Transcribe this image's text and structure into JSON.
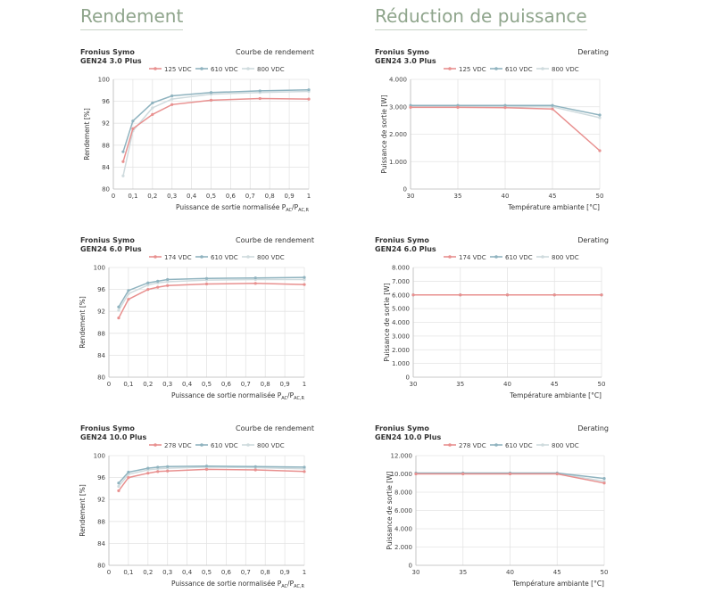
{
  "sections": {
    "left_title": "Rendement",
    "right_title": "Réduction de puissance"
  },
  "colors": {
    "red": "#e8908f",
    "blue": "#8fb3bf",
    "light": "#cfdbde",
    "grid": "#e4e4e4",
    "axis": "#bdbdbd"
  },
  "chart_data": [
    {
      "type": "line",
      "product_line1": "Fronius Symo",
      "product_line2": "GEN24 3.0 Plus",
      "title": "Courbe de rendement",
      "ylabel": "Rendement [%]",
      "xlabel_main": "Puissance de sortie normalisée P",
      "xlabel_sub1": "AC",
      "xlabel_mid": "/P",
      "xlabel_sub2": "AC,R",
      "xlim": [
        0,
        1
      ],
      "ylim": [
        80,
        100
      ],
      "xticks": [
        "0",
        "0,1",
        "0,2",
        "0,3",
        "0,4",
        "0,5",
        "0,6",
        "0,7",
        "0,8",
        "0,9",
        "1"
      ],
      "yticks": [
        "80",
        "84",
        "88",
        "92",
        "96",
        "100"
      ],
      "series": [
        {
          "name": "125 VDC",
          "x": [
            0.05,
            0.1,
            0.2,
            0.3,
            0.5,
            0.75,
            1.0
          ],
          "y": [
            85.0,
            91.0,
            93.6,
            95.4,
            96.2,
            96.5,
            96.4
          ]
        },
        {
          "name": "610 VDC",
          "x": [
            0.05,
            0.1,
            0.2,
            0.3,
            0.5,
            0.75,
            1.0
          ],
          "y": [
            86.8,
            92.4,
            95.7,
            97.0,
            97.6,
            97.9,
            98.1
          ]
        },
        {
          "name": "800 VDC",
          "x": [
            0.05,
            0.1,
            0.2,
            0.3,
            0.5,
            0.75,
            1.0
          ],
          "y": [
            82.4,
            90.6,
            94.8,
            96.4,
            97.3,
            97.6,
            97.8
          ]
        }
      ]
    },
    {
      "type": "line",
      "product_line1": "Fronius Symo",
      "product_line2": "GEN24 3.0 Plus",
      "title": "Derating",
      "ylabel": "Puissance de sortie [W]",
      "xlabel_main": "Température ambiante [°C]",
      "xlim": [
        30,
        50
      ],
      "ylim": [
        0,
        4000
      ],
      "xticks": [
        "30",
        "35",
        "40",
        "45",
        "50"
      ],
      "yticks": [
        "0",
        "1.000",
        "2.000",
        "3.000",
        "4.000"
      ],
      "series": [
        {
          "name": "125 VDC",
          "x": [
            30,
            35,
            40,
            45,
            50
          ],
          "y": [
            2980,
            2980,
            2970,
            2920,
            1400
          ]
        },
        {
          "name": "610 VDC",
          "x": [
            30,
            35,
            40,
            45,
            50
          ],
          "y": [
            3050,
            3050,
            3050,
            3050,
            2700
          ]
        },
        {
          "name": "800 VDC",
          "x": [
            30,
            35,
            40,
            45,
            50
          ],
          "y": [
            3000,
            3000,
            3000,
            3000,
            2600
          ]
        }
      ]
    },
    {
      "type": "line",
      "product_line1": "Fronius Symo",
      "product_line2": "GEN24 6.0 Plus",
      "title": "Courbe de rendement",
      "ylabel": "Rendement [%]",
      "xlabel_main": "Puissance de sortie normalisée P",
      "xlabel_sub1": "AC",
      "xlabel_mid": "/P",
      "xlabel_sub2": "AC,R",
      "xlim": [
        0,
        1
      ],
      "ylim": [
        80,
        100
      ],
      "xticks": [
        "0",
        "0,1",
        "0,2",
        "0,3",
        "0,4",
        "0,5",
        "0,6",
        "0,7",
        "0,8",
        "0,9",
        "1"
      ],
      "yticks": [
        "80",
        "84",
        "88",
        "92",
        "96",
        "100"
      ],
      "series": [
        {
          "name": "174 VDC",
          "x": [
            0.05,
            0.1,
            0.2,
            0.25,
            0.3,
            0.5,
            0.75,
            1.0
          ],
          "y": [
            90.8,
            94.2,
            96.0,
            96.4,
            96.7,
            97.0,
            97.1,
            96.9
          ]
        },
        {
          "name": "610 VDC",
          "x": [
            0.05,
            0.1,
            0.2,
            0.25,
            0.3,
            0.5,
            0.75,
            1.0
          ],
          "y": [
            92.8,
            95.8,
            97.2,
            97.5,
            97.8,
            98.0,
            98.1,
            98.2
          ]
        },
        {
          "name": "800 VDC",
          "x": [
            0.05,
            0.1,
            0.2,
            0.25,
            0.3,
            0.5,
            0.75,
            1.0
          ],
          "y": [
            92.2,
            95.2,
            96.8,
            97.2,
            97.4,
            97.7,
            97.8,
            97.8
          ]
        }
      ]
    },
    {
      "type": "line",
      "product_line1": "Fronius Symo",
      "product_line2": "GEN24 6.0 Plus",
      "title": "Derating",
      "ylabel": "Puissance de sortie [W]",
      "xlabel_main": "Température ambiante [°C]",
      "xlim": [
        30,
        50
      ],
      "ylim": [
        0,
        8000
      ],
      "xticks": [
        "30",
        "35",
        "40",
        "45",
        "50"
      ],
      "yticks": [
        "0",
        "1.000",
        "2.000",
        "3.000",
        "4.000",
        "5.000",
        "6.000",
        "7.000",
        "8.000"
      ],
      "series": [
        {
          "name": "174 VDC",
          "x": [
            30,
            35,
            40,
            45,
            50
          ],
          "y": [
            6000,
            6000,
            6000,
            6000,
            6000
          ]
        },
        {
          "name": "610 VDC",
          "x": [
            30,
            35,
            40,
            45,
            50
          ],
          "y": [
            6000,
            6000,
            6000,
            6000,
            6000
          ]
        },
        {
          "name": "800 VDC",
          "x": [
            30,
            35,
            40,
            45,
            50
          ],
          "y": [
            6000,
            6000,
            6000,
            6000,
            6000
          ]
        }
      ]
    },
    {
      "type": "line",
      "product_line1": "Fronius Symo",
      "product_line2": "GEN24 10.0 Plus",
      "title": "Courbe de rendement",
      "ylabel": "Rendement [%]",
      "xlabel_main": "Puissance de sortie normalisée P",
      "xlabel_sub1": "AC",
      "xlabel_mid": "/P",
      "xlabel_sub2": "AC,R",
      "xlim": [
        0,
        1
      ],
      "ylim": [
        80,
        100
      ],
      "xticks": [
        "0",
        "0,1",
        "0,2",
        "0,3",
        "0,4",
        "0,5",
        "0,6",
        "0,7",
        "0,8",
        "0,9",
        "1"
      ],
      "yticks": [
        "80",
        "84",
        "88",
        "92",
        "96",
        "100"
      ],
      "series": [
        {
          "name": "278 VDC",
          "x": [
            0.05,
            0.1,
            0.2,
            0.25,
            0.3,
            0.5,
            0.75,
            1.0
          ],
          "y": [
            93.6,
            96.0,
            96.8,
            97.1,
            97.2,
            97.5,
            97.4,
            97.1
          ]
        },
        {
          "name": "610 VDC",
          "x": [
            0.05,
            0.1,
            0.2,
            0.25,
            0.3,
            0.5,
            0.75,
            1.0
          ],
          "y": [
            95.0,
            97.0,
            97.7,
            97.9,
            98.0,
            98.1,
            98.0,
            97.9
          ]
        },
        {
          "name": "800 VDC",
          "x": [
            0.05,
            0.1,
            0.2,
            0.25,
            0.3,
            0.5,
            0.75,
            1.0
          ],
          "y": [
            94.4,
            96.6,
            97.4,
            97.6,
            97.7,
            97.9,
            97.8,
            97.6
          ]
        }
      ]
    },
    {
      "type": "line",
      "product_line1": "Fronius Symo",
      "product_line2": "GEN24 10.0 Plus",
      "title": "Derating",
      "ylabel": "Puissance de sortie [W]",
      "xlabel_main": "Température ambiante [°C]",
      "xlim": [
        30,
        50
      ],
      "ylim": [
        0,
        12000
      ],
      "xticks": [
        "30",
        "35",
        "40",
        "45",
        "50"
      ],
      "yticks": [
        "0",
        "2.000",
        "4.000",
        "6.000",
        "8.000",
        "10.000",
        "12.000"
      ],
      "series": [
        {
          "name": "278 VDC",
          "x": [
            30,
            35,
            40,
            45,
            50
          ],
          "y": [
            10000,
            10000,
            10000,
            10000,
            9000
          ]
        },
        {
          "name": "610 VDC",
          "x": [
            30,
            35,
            40,
            45,
            50
          ],
          "y": [
            10100,
            10100,
            10100,
            10100,
            9500
          ]
        },
        {
          "name": "800 VDC",
          "x": [
            30,
            35,
            40,
            45,
            50
          ],
          "y": [
            10050,
            10050,
            10050,
            10050,
            9200
          ]
        }
      ]
    }
  ]
}
